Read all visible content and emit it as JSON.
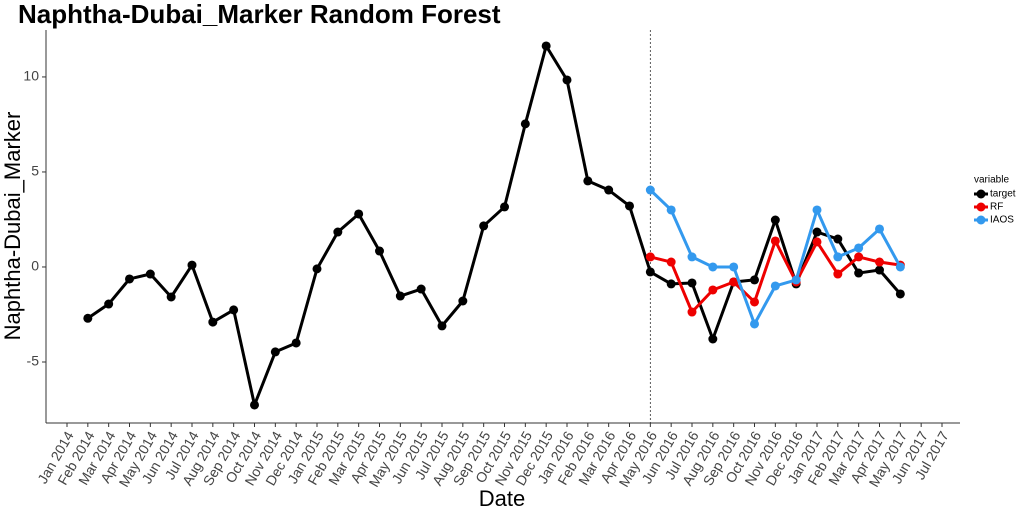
{
  "chart_data": {
    "type": "line",
    "title": "Naphtha-Dubai_Marker Random Forest",
    "x_label": "Date",
    "y_label": "Naphtha-Dubai_Marker",
    "legend_title": "variable",
    "legend_position": "right",
    "grid": false,
    "vline": "May 2016",
    "categories": [
      "Jan 2014",
      "Feb 2014",
      "Mar 2014",
      "Apr 2014",
      "May 2014",
      "Jun 2014",
      "Jul 2014",
      "Aug 2014",
      "Sep 2014",
      "Oct 2014",
      "Nov 2014",
      "Dec 2014",
      "Jan 2015",
      "Feb 2015",
      "Mar 2015",
      "Apr 2015",
      "May 2015",
      "Jun 2015",
      "Jul 2015",
      "Aug 2015",
      "Sep 2015",
      "Oct 2015",
      "Nov 2015",
      "Dec 2015",
      "Jan 2016",
      "Feb 2016",
      "Mar 2016",
      "Apr 2016",
      "May 2016",
      "Jun 2016",
      "Jul 2016",
      "Aug 2016",
      "Sep 2016",
      "Oct 2016",
      "Nov 2016",
      "Dec 2016",
      "Jan 2017",
      "Feb 2017",
      "Mar 2017",
      "Apr 2017",
      "May 2017",
      "Jun 2017",
      "Jul 2017"
    ],
    "series": [
      {
        "name": "target",
        "color": "#000000",
        "values": [
          null,
          -2.7,
          -1.95,
          -0.63,
          -0.37,
          -1.58,
          0.1,
          -2.9,
          -2.26,
          -7.26,
          -4.47,
          -4.0,
          -0.1,
          1.84,
          2.79,
          0.84,
          -1.53,
          -1.16,
          -3.1,
          -1.79,
          2.16,
          3.16,
          7.53,
          11.63,
          9.84,
          4.53,
          4.05,
          3.21,
          -0.26,
          -0.89,
          -0.84,
          -3.79,
          -0.79,
          -0.68,
          2.47,
          -0.89,
          1.84,
          1.47,
          -0.32,
          -0.16,
          -1.42,
          null,
          null
        ]
      },
      {
        "name": "RF",
        "color": "#ee0000",
        "values": [
          null,
          null,
          null,
          null,
          null,
          null,
          null,
          null,
          null,
          null,
          null,
          null,
          null,
          null,
          null,
          null,
          null,
          null,
          null,
          null,
          null,
          null,
          null,
          null,
          null,
          null,
          null,
          null,
          0.53,
          0.26,
          -2.37,
          -1.21,
          -0.79,
          -1.84,
          1.37,
          -0.79,
          1.32,
          -0.37,
          0.53,
          0.26,
          0.1,
          null,
          null
        ]
      },
      {
        "name": "IAOS",
        "color": "#3399ee",
        "values": [
          null,
          null,
          null,
          null,
          null,
          null,
          null,
          null,
          null,
          null,
          null,
          null,
          null,
          null,
          null,
          null,
          null,
          null,
          null,
          null,
          null,
          null,
          null,
          null,
          null,
          null,
          null,
          null,
          4.05,
          3.0,
          0.53,
          0,
          0,
          -3.0,
          -1.0,
          -0.68,
          3.0,
          0.53,
          1.0,
          2.0,
          0,
          null,
          null
        ]
      }
    ],
    "ylim": [
      -8.21,
      12.47
    ],
    "yticks": [
      -5,
      0,
      5,
      10
    ]
  }
}
